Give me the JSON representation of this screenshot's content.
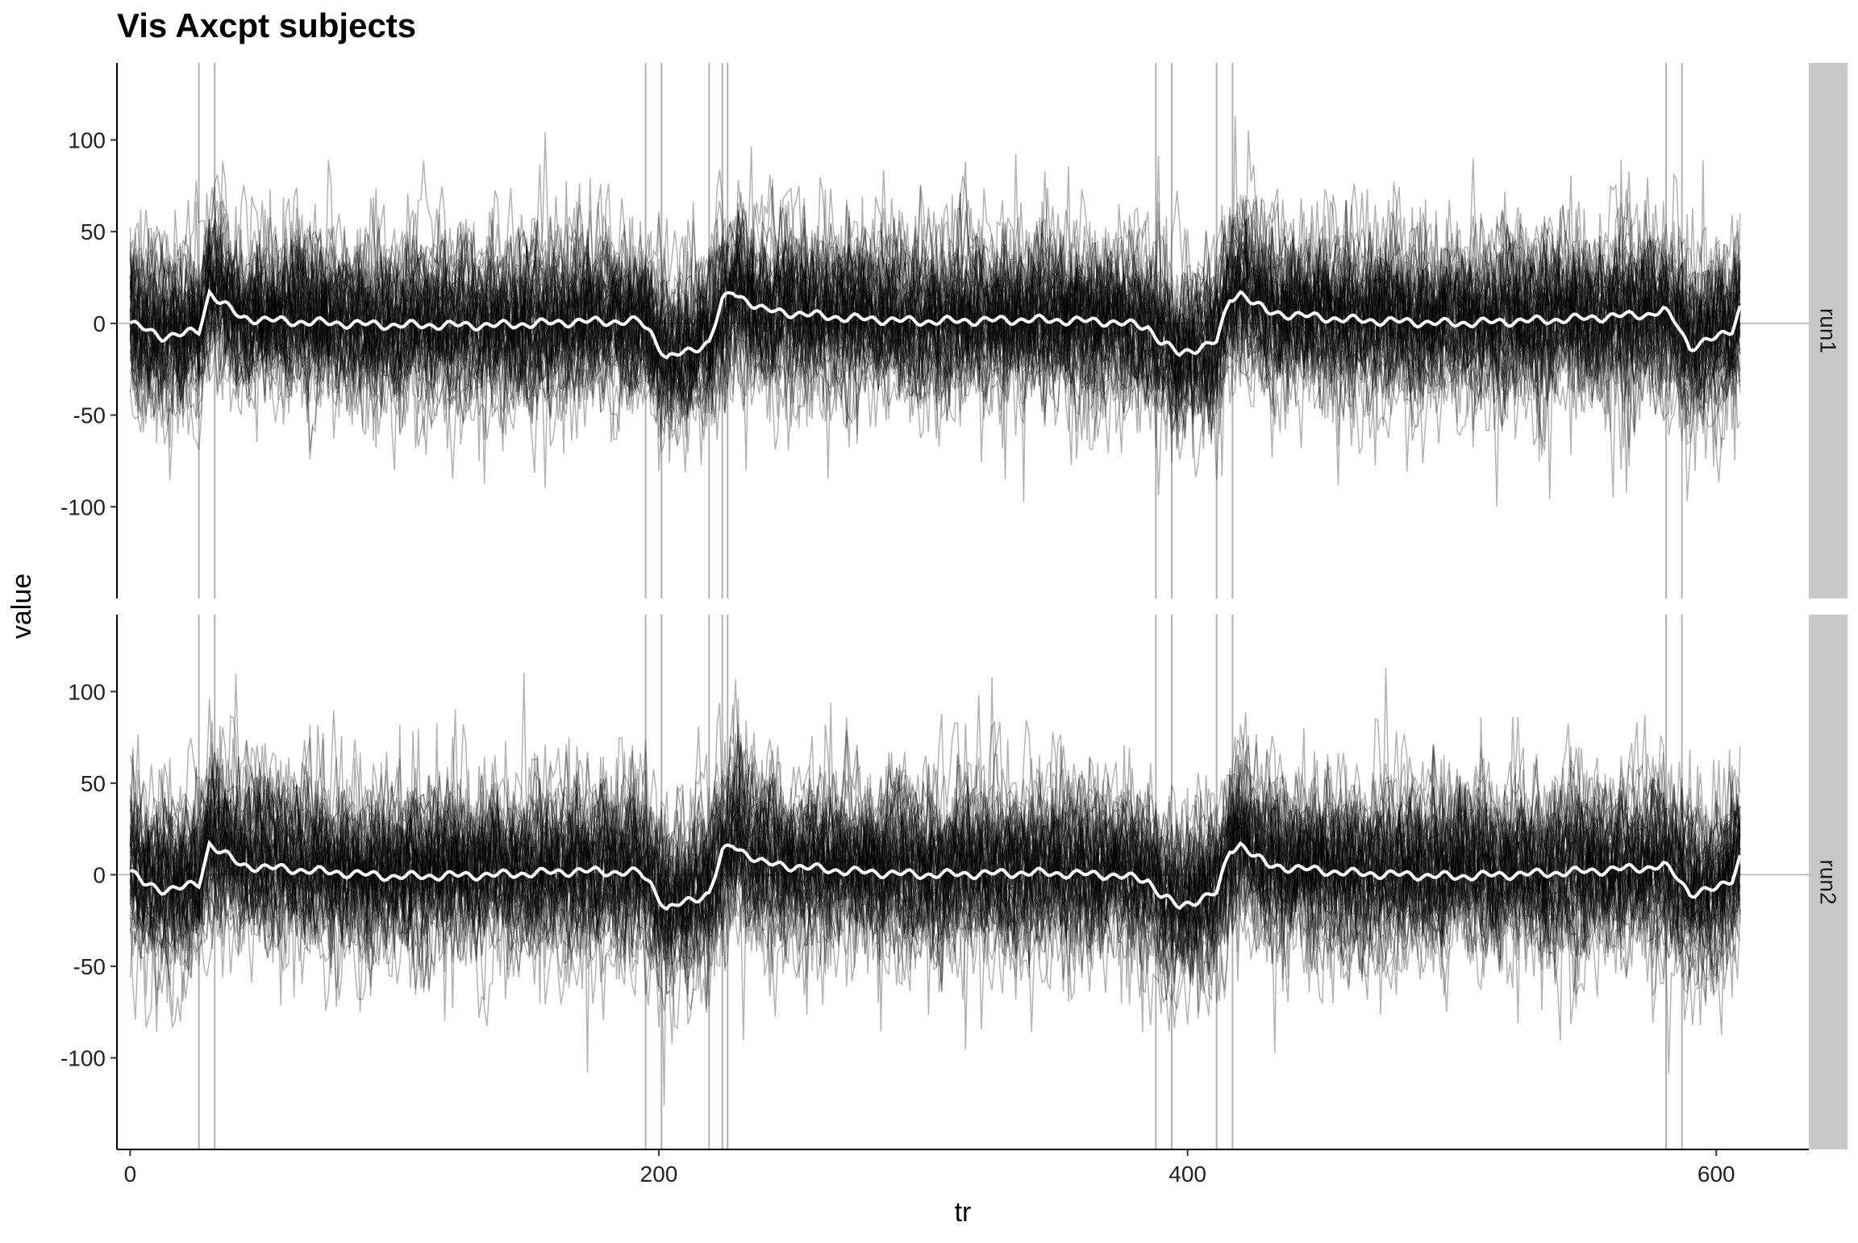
{
  "chart_data": {
    "type": "line",
    "title": "Vis Axcpt subjects",
    "xlabel": "tr",
    "ylabel": "value",
    "xlim": [
      -5,
      635
    ],
    "ylim": [
      -150,
      142
    ],
    "x_ticks": [
      0,
      200,
      400,
      600
    ],
    "y_ticks": [
      -100,
      -50,
      0,
      50,
      100
    ],
    "reference_hline": 0,
    "event_vlines_tr": [
      26,
      32,
      195,
      201,
      219,
      224,
      226,
      388,
      394,
      411,
      417,
      581,
      587
    ],
    "line_colors": {
      "subjects": "#000000",
      "mean": "#ffffff",
      "event_lines": "#b0b0b0",
      "strip": "#c8c8c8",
      "zero_line": "#b0b0b0"
    },
    "n_subject_traces": 60,
    "subject_trace_alpha": 0.3,
    "panels": [
      {
        "strip_label": "run1",
        "mean_keypoints": [
          [
            0,
            0
          ],
          [
            5,
            -3
          ],
          [
            12,
            -7
          ],
          [
            20,
            -6
          ],
          [
            26,
            -4
          ],
          [
            30,
            17
          ],
          [
            34,
            12
          ],
          [
            42,
            3
          ],
          [
            60,
            1
          ],
          [
            80,
            0
          ],
          [
            100,
            -1
          ],
          [
            140,
            -1
          ],
          [
            170,
            1
          ],
          [
            193,
            1
          ],
          [
            197,
            -5
          ],
          [
            203,
            -19
          ],
          [
            212,
            -15
          ],
          [
            219,
            -10
          ],
          [
            224,
            12
          ],
          [
            228,
            17
          ],
          [
            240,
            7
          ],
          [
            270,
            3
          ],
          [
            300,
            1
          ],
          [
            340,
            2
          ],
          [
            370,
            1
          ],
          [
            385,
            -2
          ],
          [
            390,
            -10
          ],
          [
            397,
            -17
          ],
          [
            406,
            -12
          ],
          [
            411,
            -10
          ],
          [
            416,
            13
          ],
          [
            420,
            17
          ],
          [
            430,
            6
          ],
          [
            460,
            2
          ],
          [
            500,
            0
          ],
          [
            540,
            2
          ],
          [
            575,
            5
          ],
          [
            580,
            7
          ],
          [
            585,
            0
          ],
          [
            590,
            -13
          ],
          [
            600,
            -8
          ],
          [
            606,
            -3
          ],
          [
            609,
            9
          ]
        ]
      },
      {
        "strip_label": "run2",
        "mean_keypoints": [
          [
            0,
            2
          ],
          [
            5,
            -5
          ],
          [
            12,
            -8
          ],
          [
            20,
            -7
          ],
          [
            26,
            -5
          ],
          [
            30,
            17
          ],
          [
            34,
            13
          ],
          [
            42,
            5
          ],
          [
            60,
            3
          ],
          [
            80,
            1
          ],
          [
            100,
            -1
          ],
          [
            140,
            0
          ],
          [
            170,
            2
          ],
          [
            193,
            1
          ],
          [
            197,
            -5
          ],
          [
            203,
            -19
          ],
          [
            212,
            -14
          ],
          [
            219,
            -10
          ],
          [
            224,
            12
          ],
          [
            228,
            16
          ],
          [
            240,
            6
          ],
          [
            270,
            2
          ],
          [
            300,
            0
          ],
          [
            340,
            1
          ],
          [
            370,
            0
          ],
          [
            385,
            -3
          ],
          [
            390,
            -11
          ],
          [
            397,
            -18
          ],
          [
            406,
            -12
          ],
          [
            411,
            -10
          ],
          [
            416,
            13
          ],
          [
            420,
            17
          ],
          [
            430,
            5
          ],
          [
            460,
            1
          ],
          [
            500,
            -1
          ],
          [
            540,
            1
          ],
          [
            575,
            4
          ],
          [
            580,
            5
          ],
          [
            585,
            -1
          ],
          [
            590,
            -10
          ],
          [
            600,
            -8
          ],
          [
            606,
            -2
          ],
          [
            609,
            10
          ]
        ]
      }
    ]
  }
}
